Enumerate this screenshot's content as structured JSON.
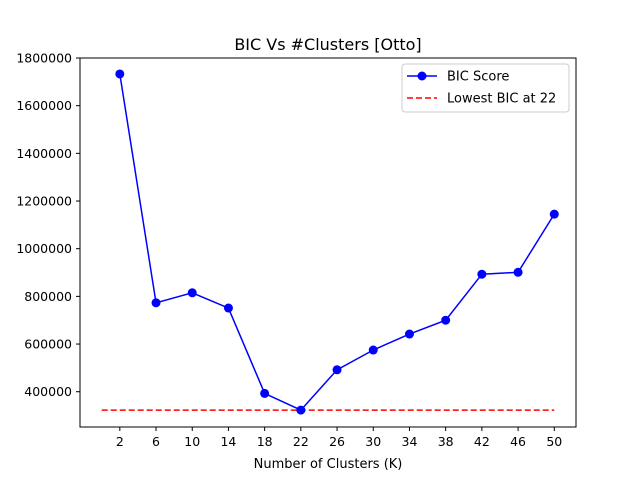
{
  "chart_data": {
    "type": "line",
    "title": "BIC Vs #Clusters [Otto]",
    "xlabel": "Number of Clusters (K)",
    "ylabel": "",
    "x": [
      2,
      6,
      10,
      14,
      18,
      22,
      26,
      30,
      34,
      38,
      42,
      46,
      50
    ],
    "xticks": [
      "2",
      "6",
      "10",
      "14",
      "18",
      "22",
      "26",
      "30",
      "34",
      "38",
      "42",
      "46",
      "50"
    ],
    "xlim": [
      -2.4,
      52.4
    ],
    "ylim": [
      252000,
      1800000
    ],
    "yticks": [
      400000,
      600000,
      800000,
      1000000,
      1200000,
      1400000,
      1600000,
      1800000
    ],
    "ytick_labels": [
      "400000",
      "600000",
      "800000",
      "1000000",
      "1200000",
      "1400000",
      "1600000",
      "1800000"
    ],
    "grid": false,
    "legend_position": "top-right",
    "series": [
      {
        "name": "BIC Score",
        "color": "#0000ff",
        "style": "solid-with-circle-markers",
        "values": [
          1733000,
          773000,
          815000,
          751000,
          393000,
          323000,
          492000,
          575000,
          642000,
          700000,
          893000,
          901000,
          1145000
        ]
      }
    ],
    "reference_line": {
      "name": "Lowest BIC at 22",
      "color": "#ff0000",
      "style": "dashed",
      "y": 323000,
      "x_range": [
        0,
        50
      ]
    }
  }
}
